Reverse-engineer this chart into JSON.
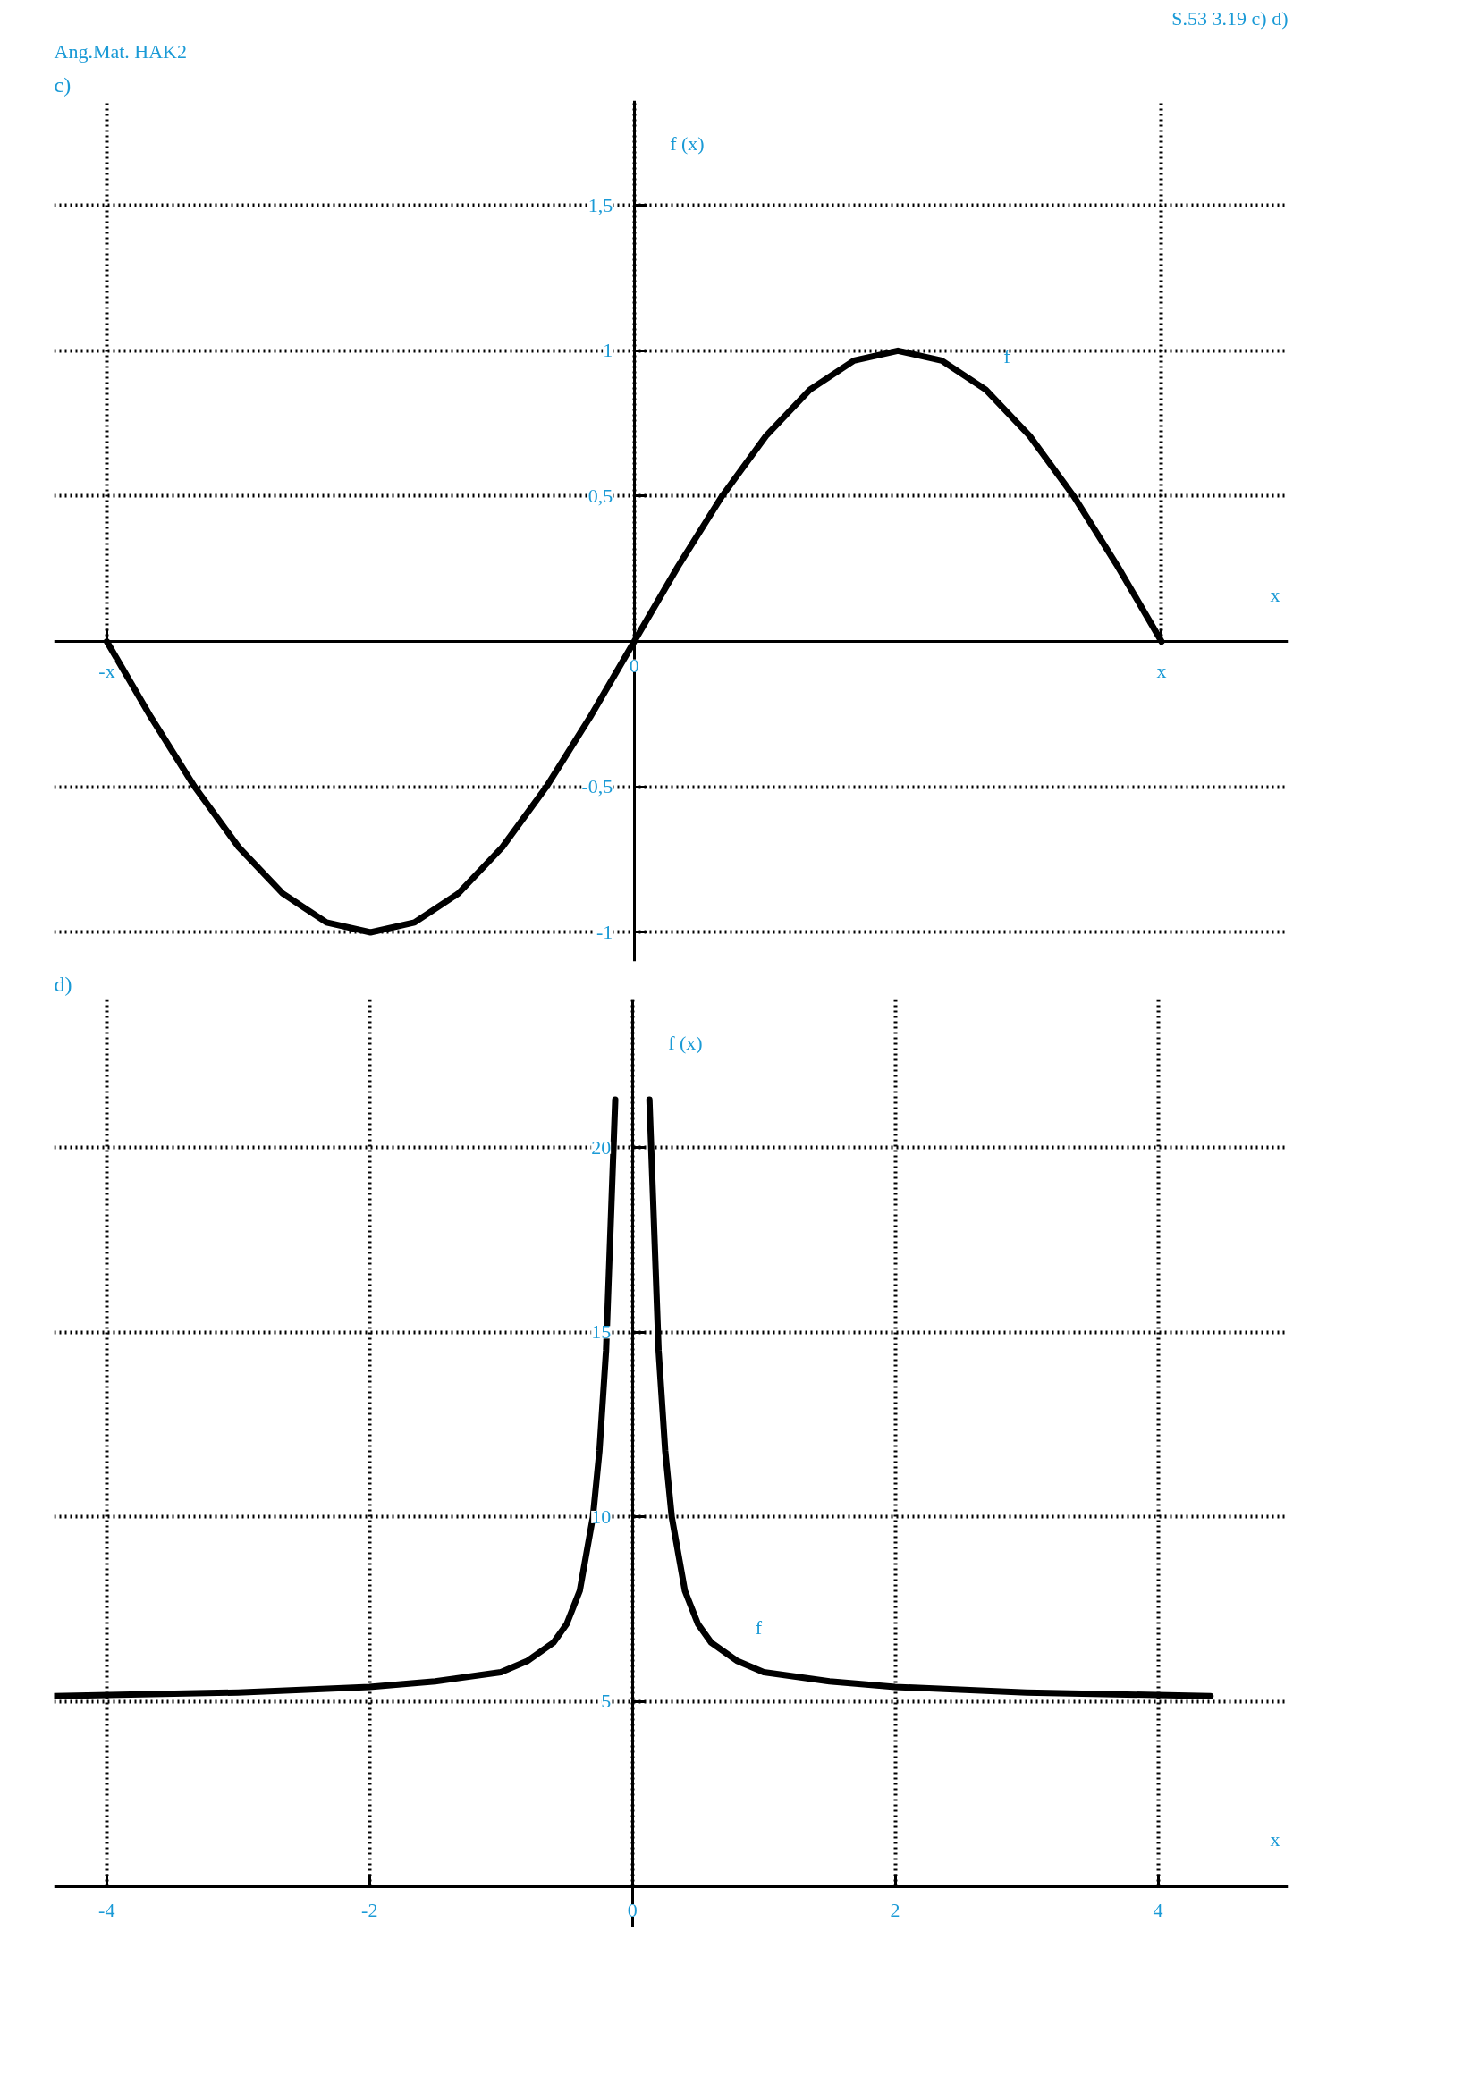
{
  "chart_data": [
    {
      "type": "line",
      "title": "c)",
      "ylabel": "f (x)",
      "xlabel": "x",
      "annotations": [
        "Ang.Mat. HAK2",
        "S.53 3.19 c) d)"
      ],
      "ylim": [
        -1.1,
        1.86
      ],
      "categories": [
        "-x",
        null,
        null,
        null,
        null,
        null,
        null,
        null,
        null,
        null,
        null,
        null,
        "0",
        null,
        null,
        null,
        null,
        null,
        null,
        null,
        null,
        null,
        null,
        null,
        "x"
      ],
      "yticks": [
        -1,
        {
          "value": -0.5,
          "label": "-0,5"
        },
        {
          "value": 0.5,
          "label": "0,5"
        },
        1,
        {
          "value": 1.5,
          "label": "1,5"
        }
      ],
      "grid": true,
      "legend": false,
      "line_style": "solid",
      "series": [
        {
          "name": "f",
          "color": "#000000",
          "values": [
            0,
            -0.259,
            -0.5,
            -0.707,
            -0.866,
            -0.966,
            -1,
            -0.966,
            -0.866,
            -0.707,
            -0.5,
            -0.259,
            0,
            0.259,
            0.5,
            0.707,
            0.866,
            0.966,
            1,
            0.966,
            0.866,
            0.707,
            0.5,
            0.259,
            0
          ]
        }
      ]
    },
    {
      "type": "line",
      "title": "d)",
      "ylabel": "f (x)",
      "xlabel": "x",
      "xlim": [
        -4.4,
        4.99
      ],
      "ylim": [
        -1.1,
        24
      ],
      "xticks": [
        -4,
        -2,
        0,
        2,
        4
      ],
      "yticks": [
        5,
        10,
        15,
        20
      ],
      "grid": true,
      "legend": false,
      "line_style": "solid",
      "x": [
        -4.4,
        -3,
        -2,
        -1.5,
        -1,
        -0.8,
        -0.6,
        -0.5,
        -0.4,
        -0.3,
        -0.25,
        -0.2,
        -0.13,
        0,
        0.13,
        0.2,
        0.25,
        0.3,
        0.4,
        0.5,
        0.6,
        0.8,
        1,
        1.5,
        2,
        3,
        4.4
      ],
      "series": [
        {
          "name": "f",
          "color": "#000000",
          "values": [
            5.15,
            5.25,
            5.4,
            5.55,
            5.8,
            6.1,
            6.6,
            7.1,
            8,
            10,
            11.8,
            14.5,
            21.3,
            null,
            21.3,
            14.5,
            11.8,
            10,
            8,
            7.1,
            6.6,
            6.1,
            5.8,
            5.55,
            5.4,
            5.25,
            5.15
          ]
        }
      ]
    }
  ]
}
